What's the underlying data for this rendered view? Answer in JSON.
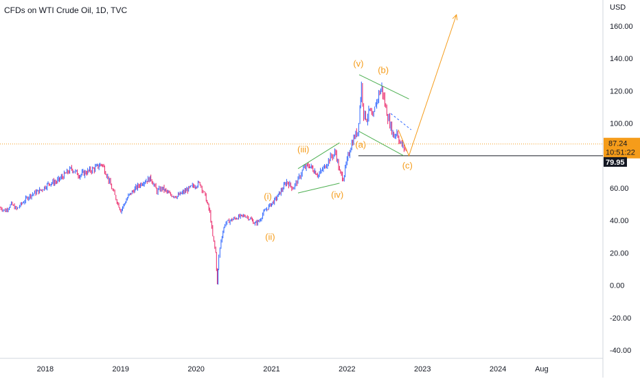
{
  "header": {
    "title": "CFDs on WTI Crude Oil, 1D, TVC"
  },
  "chart_data": {
    "type": "line",
    "title": "CFDs on WTI Crude Oil, 1D, TVC",
    "currency": "USD",
    "yticks": [
      "160.00",
      "140.00",
      "120.00",
      "100.00",
      "80.00",
      "60.00",
      "40.00",
      "20.00",
      "0.00",
      "-20.00",
      "-40.00"
    ],
    "ytick_values": [
      160,
      140,
      120,
      100,
      80,
      60,
      40,
      20,
      0,
      -20,
      -40
    ],
    "ylim": [
      -45,
      175
    ],
    "xticks": [
      "2018",
      "2019",
      "2020",
      "2021",
      "2022",
      "2023",
      "2024",
      "Aug"
    ],
    "xtick_values": [
      2018.0,
      2019.0,
      2020.0,
      2021.0,
      2022.0,
      2023.0,
      2024.0,
      2024.58
    ],
    "xlim": [
      2017.4,
      2025.3
    ],
    "price_series": {
      "name": "",
      "x": [
        2017.4,
        2017.47,
        2017.55,
        2017.62,
        2017.7,
        2017.78,
        2017.86,
        2017.95,
        2018.05,
        2018.15,
        2018.25,
        2018.35,
        2018.45,
        2018.55,
        2018.65,
        2018.75,
        2018.8,
        2018.88,
        2018.95,
        2019.0,
        2019.1,
        2019.2,
        2019.3,
        2019.4,
        2019.48,
        2019.55,
        2019.65,
        2019.75,
        2019.85,
        2019.95,
        2020.05,
        2020.12,
        2020.18,
        2020.22,
        2020.26,
        2020.28,
        2020.3,
        2020.33,
        2020.38,
        2020.45,
        2020.55,
        2020.65,
        2020.72,
        2020.78,
        2020.84,
        2020.88,
        2020.95,
        2021.05,
        2021.15,
        2021.2,
        2021.28,
        2021.35,
        2021.42,
        2021.5,
        2021.56,
        2021.62,
        2021.7,
        2021.78,
        2021.85,
        2021.9,
        2021.95,
        2022.0,
        2022.05,
        2022.1,
        2022.14,
        2022.17,
        2022.19,
        2022.22,
        2022.26,
        2022.3,
        2022.34,
        2022.38,
        2022.42,
        2022.46,
        2022.5,
        2022.54,
        2022.58,
        2022.62,
        2022.66,
        2022.7,
        2022.74,
        2022.77,
        2022.8
      ],
      "y": [
        48,
        46,
        50,
        47,
        51,
        55,
        57,
        59,
        63,
        64,
        68,
        72,
        68,
        70,
        72,
        75,
        70,
        60,
        52,
        46,
        55,
        60,
        64,
        66,
        58,
        60,
        56,
        55,
        58,
        61,
        63,
        55,
        45,
        30,
        20,
        1,
        18,
        28,
        38,
        40,
        42,
        43,
        41,
        38,
        40,
        44,
        48,
        53,
        60,
        64,
        60,
        65,
        72,
        74,
        71,
        68,
        73,
        79,
        82,
        70,
        66,
        77,
        86,
        92,
        95,
        110,
        123,
        106,
        103,
        108,
        102,
        112,
        118,
        122,
        112,
        104,
        98,
        92,
        95,
        88,
        86,
        84,
        82
      ]
    },
    "current_price": {
      "value": 87.24,
      "label": "87.24",
      "countdown": "10:51:22"
    },
    "horizontal_line": {
      "value": 79.95,
      "label": "79.95"
    },
    "wave_labels": [
      {
        "text": "(i)",
        "x": 2020.95,
        "y": 53
      },
      {
        "text": "(ii)",
        "x": 2020.98,
        "y": 28
      },
      {
        "text": "(iii)",
        "x": 2021.42,
        "y": 82
      },
      {
        "text": "(iv)",
        "x": 2021.87,
        "y": 54
      },
      {
        "text": "(v)",
        "x": 2022.15,
        "y": 135
      },
      {
        "text": "(a)",
        "x": 2022.18,
        "y": 85
      },
      {
        "text": "(b)",
        "x": 2022.48,
        "y": 131
      },
      {
        "text": "(c)",
        "x": 2022.8,
        "y": 72
      }
    ],
    "trend_lines": [
      {
        "color": "#4caf50",
        "x1": 2021.35,
        "y1": 72,
        "x2": 2021.9,
        "y2": 88
      },
      {
        "color": "#4caf50",
        "x1": 2021.35,
        "y1": 57,
        "x2": 2021.9,
        "y2": 63
      },
      {
        "color": "#4caf50",
        "x1": 2022.16,
        "y1": 130,
        "x2": 2022.82,
        "y2": 115
      },
      {
        "color": "#4caf50",
        "x1": 2022.16,
        "y1": 95,
        "x2": 2022.75,
        "y2": 80
      }
    ],
    "projection": {
      "color": "#f59c1a",
      "points": [
        [
          2022.68,
          96
        ],
        [
          2022.82,
          80
        ],
        [
          2023.45,
          167
        ]
      ]
    },
    "dashed_line": {
      "color": "#2962ff",
      "x1": 2022.58,
      "y1": 106,
      "x2": 2022.85,
      "y2": 96
    },
    "colors": {
      "up": "#2962ff",
      "down": "#e91e63",
      "accent": "#f59c1a",
      "channel": "#4caf50",
      "text": "#131722"
    }
  }
}
